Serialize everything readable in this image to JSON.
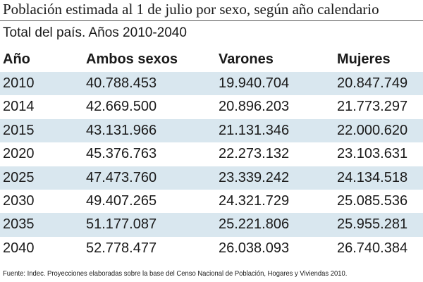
{
  "header": {
    "title": "Población estimada al 1 de julio por sexo, según año calendario",
    "subtitle": "Total del país. Años 2010-2040"
  },
  "table": {
    "columns": [
      "Año",
      "Ambos sexos",
      "Varones",
      "Mujeres"
    ],
    "rows": [
      [
        "2010",
        "40.788.453",
        "19.940.704",
        "20.847.749"
      ],
      [
        "2014",
        "42.669.500",
        "20.896.203",
        "21.773.297"
      ],
      [
        "2015",
        "43.131.966",
        "21.131.346",
        "22.000.620"
      ],
      [
        "2020",
        "45.376.763",
        "22.273.132",
        "23.103.631"
      ],
      [
        "2025",
        "47.473.760",
        "23.339.242",
        "24.134.518"
      ],
      [
        "2030",
        "49.407.265",
        "24.321.729",
        "25.085.536"
      ],
      [
        "2035",
        "51.177.087",
        "25.221.806",
        "25.955.281"
      ],
      [
        "2040",
        "52.778.477",
        "26.038.093",
        "26.740.384"
      ]
    ]
  },
  "footer": {
    "source": "Fuente: Indec. Proyecciones elaboradas sobre la base del Censo Nacional de Población, Hogares y Viviendas 2010."
  }
}
